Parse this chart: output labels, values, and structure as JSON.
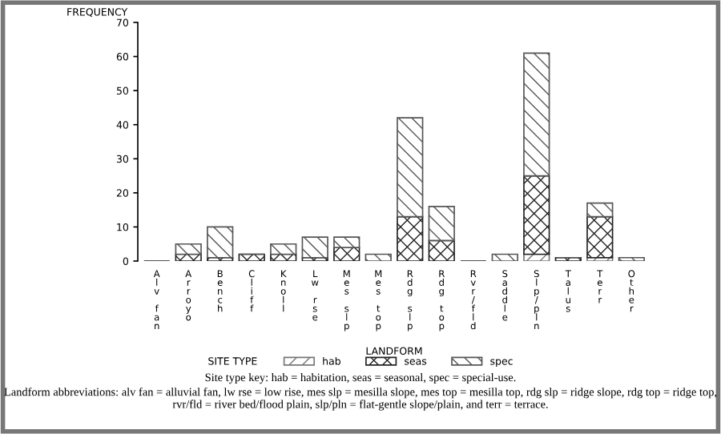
{
  "chart_data": {
    "type": "bar",
    "stacked": true,
    "ylabel": "FREQUENCY",
    "xlabel": "LANDFORM",
    "legend_title": "SITE TYPE",
    "legend": "bottom",
    "categories": [
      "Alv fan",
      "Arroyo",
      "Bench",
      "Cliff",
      "Knoll",
      "Lw rse",
      "Mes slp",
      "Mes top",
      "Rdg slp",
      "Rdg top",
      "Rvr/fld",
      "Saddle",
      "Slp/pln",
      "Talus",
      "Terr",
      "Other"
    ],
    "series": [
      {
        "name": "hab",
        "color": "#777777",
        "values": [
          0,
          0,
          0,
          0,
          0,
          0,
          0,
          0,
          0,
          0,
          0,
          0,
          2,
          0,
          1,
          0
        ]
      },
      {
        "name": "seas",
        "color": "#222222",
        "values": [
          0,
          2,
          1,
          2,
          2,
          1,
          4,
          0,
          13,
          6,
          0,
          0,
          23,
          1,
          12,
          0
        ]
      },
      {
        "name": "spec",
        "color": "#555555",
        "values": [
          0,
          3,
          9,
          0,
          3,
          6,
          3,
          2,
          29,
          10,
          0,
          2,
          36,
          0,
          4,
          1
        ]
      }
    ],
    "ylim": [
      0,
      70
    ],
    "yticks": [
      0,
      10,
      20,
      30,
      40,
      50,
      60,
      70
    ],
    "grid": false,
    "annotations": [
      "Site type key: hab = habitation, seas = seasonal, spec = special-use.",
      "Landform abbreviations: alv fan = alluvial fan, lw rse = low rise, mes slp = mesilla slope, mes top = mesilla top, rdg slp = ridge slope, rdg top = ridge top, rvr/fld = river bed/flood plain, slp/pln = flat-gentle slope/plain, and terr = terrace."
    ]
  }
}
